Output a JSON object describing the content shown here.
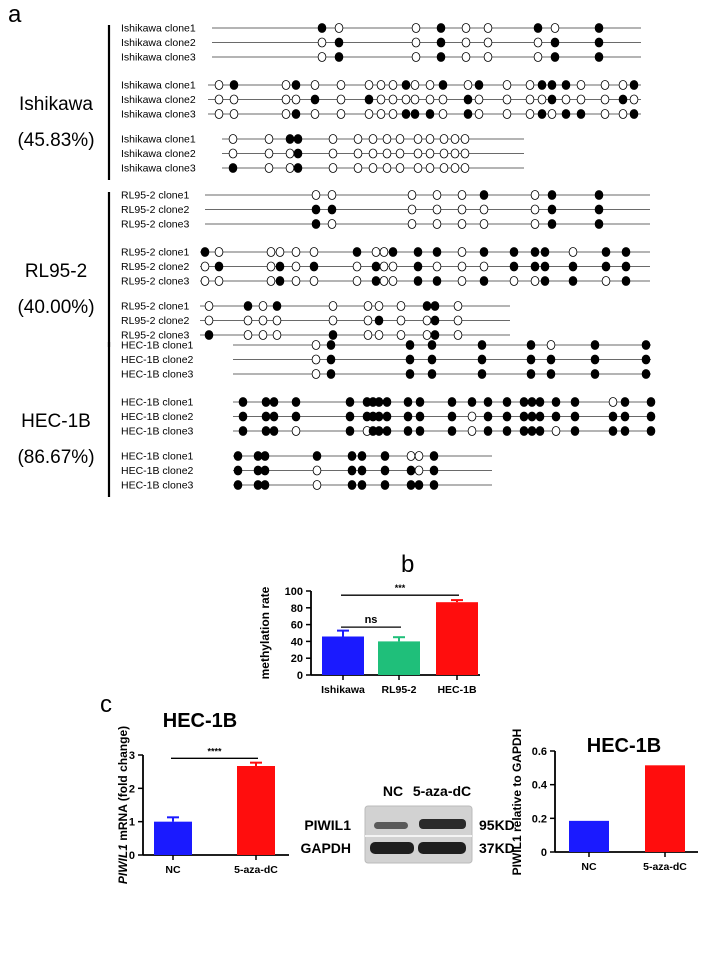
{
  "panel_labels": {
    "a": "a",
    "b": "b",
    "c": "c"
  },
  "panel_a": {
    "groups": [
      {
        "name": "Ishikawa",
        "rate": "(45.83%)",
        "blocks": [
          {
            "span": [
              212,
              641
            ],
            "sites": [
              322,
              339,
              416,
              441,
              466,
              488,
              538,
              555,
              599
            ],
            "rows": [
              {
                "label": "Ishikawa clone1",
                "pattern": "100100101"
              },
              {
                "label": "Ishikawa clone2",
                "pattern": "010100011"
              },
              {
                "label": "Ishikawa clone3",
                "pattern": "010100011"
              }
            ]
          },
          {
            "span": [
              208,
              641
            ],
            "sites": [
              219,
              234,
              286,
              296,
              315,
              341,
              369,
              381,
              393,
              406,
              415,
              430,
              443,
              468,
              479,
              507,
              530,
              542,
              552,
              566,
              581,
              605,
              623,
              634
            ],
            "rows": [
              {
                "label": "Ishikawa clone1",
                "pattern": "010100000100101001110001"
              },
              {
                "label": "Ishikawa clone2",
                "pattern": "000010100000010000100010"
              },
              {
                "label": "Ishikawa clone3",
                "pattern": "000100000111010001011001"
              }
            ]
          },
          {
            "span": [
              222,
              524
            ],
            "sites": [
              233,
              269,
              290,
              298,
              333,
              358,
              373,
              387,
              400,
              418,
              430,
              444,
              455,
              465
            ],
            "rows": [
              {
                "label": "Ishikawa clone1",
                "pattern": "00110000000000"
              },
              {
                "label": "Ishikawa clone2",
                "pattern": "00010000000000"
              },
              {
                "label": "Ishikawa clone3",
                "pattern": "10010000000000"
              }
            ]
          }
        ]
      },
      {
        "name": "RL95-2",
        "rate": "(40.00%)",
        "blocks": [
          {
            "span": [
              205,
              650
            ],
            "sites": [
              316,
              332,
              412,
              437,
              462,
              484,
              535,
              552,
              599
            ],
            "rows": [
              {
                "label": "RL95-2 clone1",
                "pattern": "000001011"
              },
              {
                "label": "RL95-2 clone2",
                "pattern": "110000011"
              },
              {
                "label": "RL95-2 clone3",
                "pattern": "100000011"
              }
            ]
          },
          {
            "span": [
              200,
              650
            ],
            "sites": [
              205,
              219,
              271,
              280,
              296,
              314,
              357,
              376,
              384,
              393,
              418,
              437,
              462,
              484,
              514,
              535,
              545,
              573,
              606,
              626
            ],
            "rows": [
              {
                "label": "RL95-2 clone1",
                "pattern": "10000010011101111011"
              },
              {
                "label": "RL95-2 clone2",
                "pattern": "01010101001000111111"
              },
              {
                "label": "RL95-2 clone3",
                "pattern": "00010001001101001101"
              }
            ]
          },
          {
            "span": [
              200,
              510
            ],
            "sites": [
              209,
              248,
              263,
              277,
              333,
              368,
              379,
              401,
              427,
              435,
              458
            ],
            "rows": [
              {
                "label": "RL95-2 clone1",
                "pattern": "01010000110"
              },
              {
                "label": "RL95-2 clone2",
                "pattern": "00000010010"
              },
              {
                "label": "RL95-2 clone3",
                "pattern": "10001000010"
              }
            ]
          }
        ]
      },
      {
        "name": "HEC-1B",
        "rate": "(86.67%)",
        "blocks": [
          {
            "span": [
              233,
              651
            ],
            "sites": [
              316,
              331,
              410,
              432,
              482,
              531,
              551,
              595,
              646
            ],
            "rows": [
              {
                "label": "HEC-1B clone1",
                "pattern": "011111011"
              },
              {
                "label": "HEC-1B clone2",
                "pattern": "011111111"
              },
              {
                "label": "HEC-1B clone3",
                "pattern": "011111111"
              }
            ]
          },
          {
            "span": [
              233,
              655
            ],
            "sites": [
              243,
              266,
              274,
              296,
              350,
              367,
              373,
              379,
              387,
              408,
              420,
              452,
              472,
              488,
              507,
              524,
              532,
              540,
              556,
              575,
              613,
              625,
              651
            ],
            "rows": [
              {
                "label": "HEC-1B clone1",
                "pattern": "11111111111111111111011"
              },
              {
                "label": "HEC-1B clone2",
                "pattern": "11111111111101111111111"
              },
              {
                "label": "HEC-1B clone3",
                "pattern": "11101011111101111101111"
              }
            ]
          },
          {
            "span": [
              233,
              492
            ],
            "sites": [
              238,
              258,
              265,
              317,
              352,
              362,
              385,
              411,
              419,
              434
            ],
            "rows": [
              {
                "label": "HEC-1B clone1",
                "pattern": "1111111001"
              },
              {
                "label": "HEC-1B clone2",
                "pattern": "1110111101"
              },
              {
                "label": "HEC-1B clone3",
                "pattern": "1110111111"
              }
            ]
          }
        ]
      }
    ]
  },
  "chart_data": [
    {
      "type": "bar",
      "title": "",
      "xlabel": "",
      "ylabel": "methylation rate",
      "ylim": [
        0,
        100
      ],
      "yticks": [
        0,
        20,
        40,
        60,
        80,
        100
      ],
      "categories": [
        "Ishikawa",
        "RL95-2",
        "HEC-1B"
      ],
      "values": [
        45.83,
        40.0,
        86.67
      ],
      "errors": [
        7,
        5,
        2.5
      ],
      "colors": [
        "#1a1aff",
        "#1fbf7a",
        "#ff0d0d"
      ],
      "significance": [
        {
          "from": 0,
          "to": 1,
          "label": "ns",
          "y": 57
        },
        {
          "from": 0,
          "to": 2,
          "label": "***",
          "y": 95
        }
      ]
    },
    {
      "type": "bar",
      "title": "HEC-1B",
      "xlabel": "",
      "ylabel_italic": "PIWIL1",
      "ylabel_rest": " mRNA (fold change)",
      "ylim": [
        0,
        3
      ],
      "yticks": [
        0,
        1,
        2,
        3
      ],
      "categories": [
        "NC",
        "5-aza-dC"
      ],
      "values": [
        1.0,
        2.67
      ],
      "errors": [
        0.13,
        0.1
      ],
      "colors": [
        "#1a1aff",
        "#ff0d0d"
      ],
      "significance": [
        {
          "from": 0,
          "to": 1,
          "label": "****",
          "y": 2.9
        }
      ]
    },
    {
      "type": "bar",
      "title": "HEC-1B",
      "xlabel": "",
      "ylabel": "PIWIL1 relative to GAPDH",
      "ylim": [
        0,
        0.6
      ],
      "yticks": [
        0.0,
        0.2,
        0.4,
        0.6
      ],
      "categories": [
        "NC",
        "5-aza-dC"
      ],
      "values": [
        0.185,
        0.515
      ],
      "colors": [
        "#1a1aff",
        "#ff0d0d"
      ]
    }
  ],
  "western_blot": {
    "lanes": [
      "NC",
      "5-aza-dC"
    ],
    "bands": [
      {
        "protein": "PIWIL1",
        "size": "95KD"
      },
      {
        "protein": "GAPDH",
        "size": "37KD"
      }
    ]
  }
}
